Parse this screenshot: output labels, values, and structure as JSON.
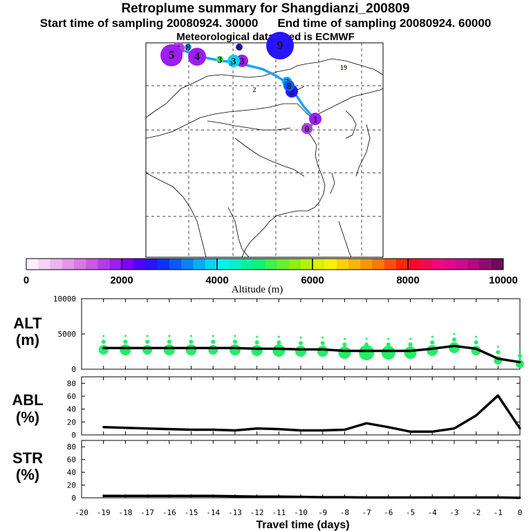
{
  "header": {
    "title": "Retroplume summary for Shangdianzi_200809",
    "start_label": "Start time of sampling 20080924. 30000",
    "end_label": "End time of sampling 20080924. 60000",
    "met_label": "Meteorological data used is ECMWF"
  },
  "colorbar": {
    "label": "Altitude (m)",
    "ticks": [
      "0",
      "2000",
      "4000",
      "6000",
      "8000",
      "10000"
    ],
    "colors": [
      "#fff0ff",
      "#f6d2f6",
      "#eeb4ee",
      "#e496e8",
      "#d878e4",
      "#c85ae4",
      "#b43ce8",
      "#9c1ef0",
      "#8000f8",
      "#5000f8",
      "#2814f8",
      "#0c32f8",
      "#0a5af8",
      "#0a82f8",
      "#0aaaf8",
      "#0ad2f8",
      "#0af0f0",
      "#0af0c8",
      "#0af0a0",
      "#14f078",
      "#3cf050",
      "#64f030",
      "#8cf014",
      "#b4f00a",
      "#dcf00a",
      "#f8f00a",
      "#f8d20a",
      "#f8b40a",
      "#f8960a",
      "#f8780a",
      "#f8500a",
      "#f8280a",
      "#f80a28",
      "#f00a50",
      "#f00a78",
      "#e00a8c",
      "#cc0a8c",
      "#b00a80",
      "#900a70",
      "#700a5c"
    ]
  },
  "map": {
    "plume_points": [
      "0",
      "1",
      "2",
      "2",
      "3",
      "3",
      "3",
      "4",
      "5",
      "5",
      "6",
      "8",
      "9",
      "19",
      "8",
      "3",
      "2"
    ]
  },
  "chart_data": [
    {
      "type": "line",
      "title": "ALT (m)",
      "ylabel": "ALT (m)",
      "ylim": [
        0,
        10000
      ],
      "yticks": [
        "0",
        "5000",
        "10000"
      ],
      "x": [
        -19,
        -18,
        -17,
        -16,
        -15,
        -14,
        -13,
        -12,
        -11,
        -10,
        -9,
        -8,
        -7,
        -6,
        -5,
        -4,
        -3,
        -2,
        -1,
        0
      ],
      "values": [
        3000,
        3000,
        3000,
        3000,
        3000,
        3000,
        3000,
        2900,
        2900,
        2800,
        2800,
        2600,
        2600,
        2600,
        2600,
        2900,
        3300,
        2900,
        1500,
        1000
      ],
      "scatter_color": "#22ee66"
    },
    {
      "type": "line",
      "title": "ABL (%)",
      "ylabel": "ABL (%)",
      "ylim": [
        0,
        90
      ],
      "yticks": [
        "0",
        "20",
        "40",
        "60",
        "80"
      ],
      "x": [
        -19,
        -18,
        -17,
        -16,
        -15,
        -14,
        -13,
        -12,
        -11,
        -10,
        -9,
        -8,
        -7,
        -6,
        -5,
        -4,
        -3,
        -2,
        -1,
        0
      ],
      "values": [
        12,
        11,
        10,
        9,
        8,
        8,
        7,
        10,
        9,
        7,
        7,
        8,
        18,
        12,
        5,
        5,
        10,
        30,
        61,
        10
      ]
    },
    {
      "type": "line",
      "title": "STR (%)",
      "ylabel": "STR (%)",
      "ylim": [
        0,
        90
      ],
      "yticks": [
        "0",
        "20",
        "40",
        "60",
        "80"
      ],
      "x": [
        -19,
        -18,
        -17,
        -16,
        -15,
        -14,
        -13,
        -12,
        -11,
        -10,
        -9,
        -8,
        -7,
        -6,
        -5,
        -4,
        -3,
        -2,
        -1,
        0
      ],
      "values": [
        3,
        3,
        3,
        3,
        3,
        3,
        2.5,
        2,
        2,
        1.5,
        1,
        1,
        0.5,
        0.5,
        0.5,
        0.5,
        0.5,
        0.5,
        0.5,
        0
      ],
      "xlabel": "Travel time (days)",
      "xticks": [
        "-20",
        "-19",
        "-18",
        "-17",
        "-16",
        "-15",
        "-14",
        "-13",
        "-12",
        "-11",
        "-10",
        "-9",
        "-8",
        "-7",
        "-6",
        "-5",
        "-4",
        "-3",
        "-2",
        "-1",
        "0"
      ]
    }
  ],
  "panel_labels": {
    "alt": [
      "ALT",
      "(m)"
    ],
    "abl": [
      "ABL",
      "(%)"
    ],
    "str": [
      "STR",
      "(%)"
    ]
  }
}
